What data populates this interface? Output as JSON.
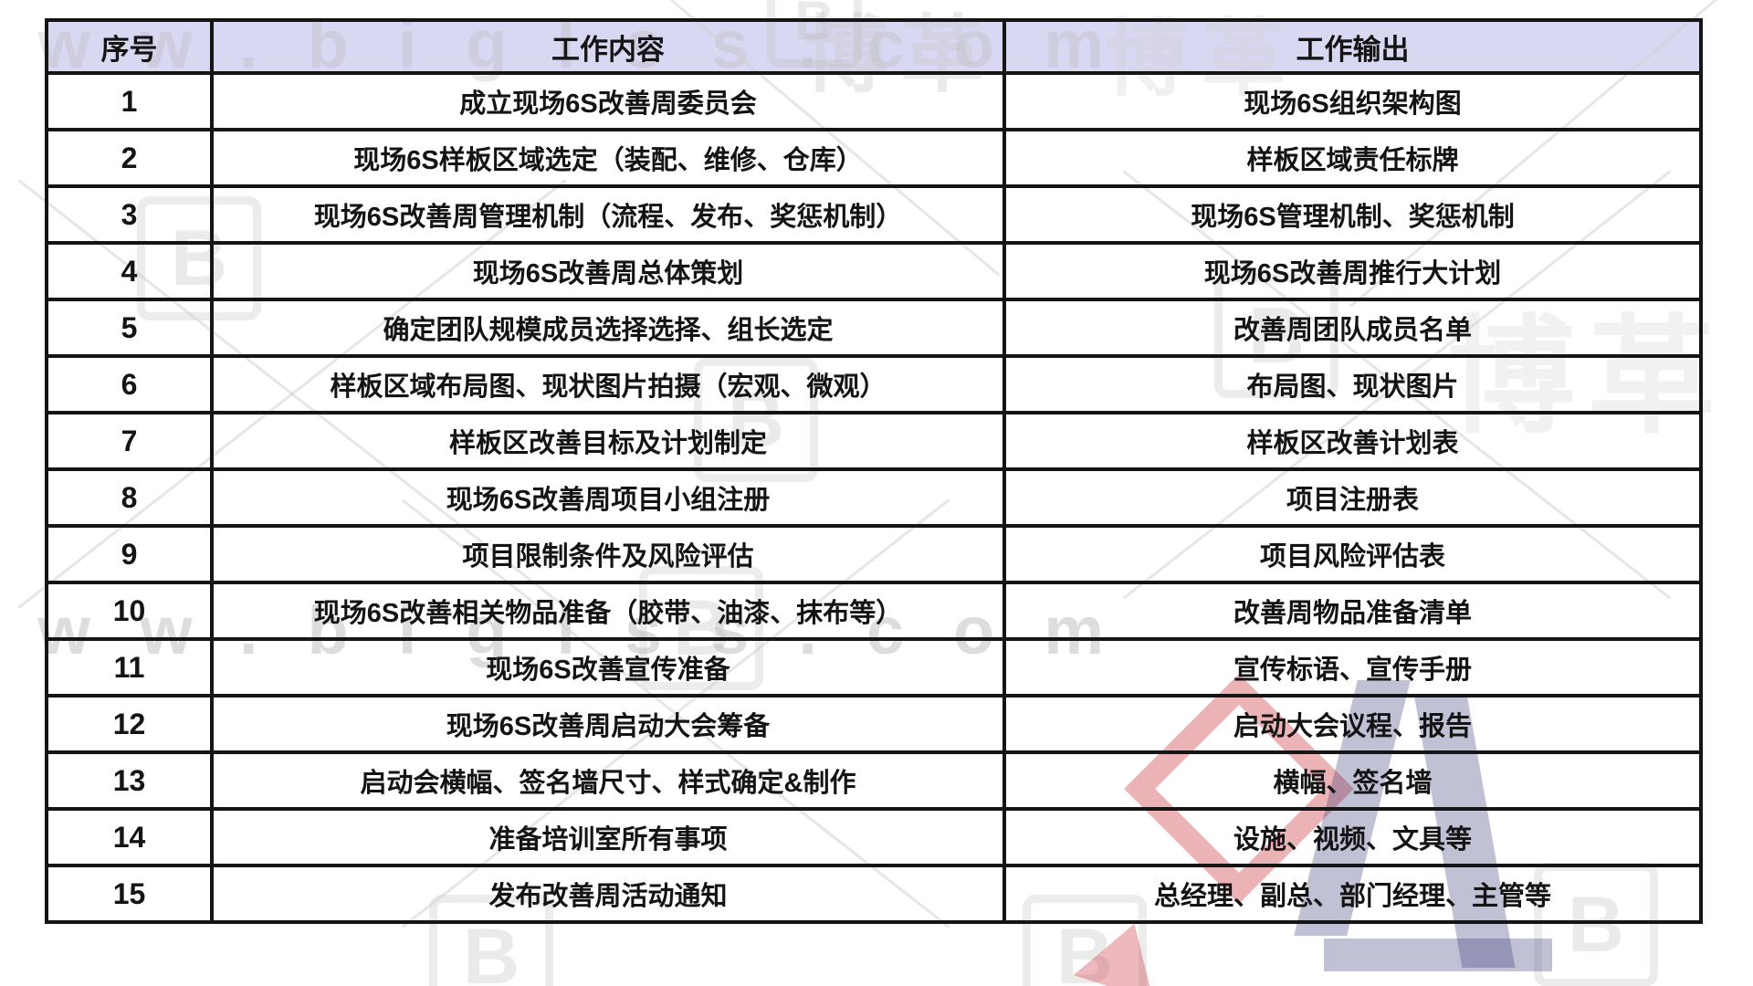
{
  "table": {
    "columns": [
      {
        "key": "index",
        "label": "序号"
      },
      {
        "key": "content",
        "label": "工作内容"
      },
      {
        "key": "output",
        "label": "工作输出"
      }
    ],
    "rows": [
      {
        "index": "1",
        "content": "成立现场6S改善周委员会",
        "output": "现场6S组织架构图"
      },
      {
        "index": "2",
        "content": "现场6S样板区域选定（装配、维修、仓库）",
        "output": "样板区域责任标牌"
      },
      {
        "index": "3",
        "content": "现场6S改善周管理机制（流程、发布、奖惩机制）",
        "output": "现场6S管理机制、奖惩机制"
      },
      {
        "index": "4",
        "content": "现场6S改善周总体策划",
        "output": "现场6S改善周推行大计划"
      },
      {
        "index": "5",
        "content": "确定团队规模成员选择选择、组长选定",
        "output": "改善周团队成员名单"
      },
      {
        "index": "6",
        "content": "样板区域布局图、现状图片拍摄（宏观、微观）",
        "output": "布局图、现状图片"
      },
      {
        "index": "7",
        "content": "样板区改善目标及计划制定",
        "output": "样板区改善计划表"
      },
      {
        "index": "8",
        "content": "现场6S改善周项目小组注册",
        "output": "项目注册表"
      },
      {
        "index": "9",
        "content": "项目限制条件及风险评估",
        "output": "项目风险评估表"
      },
      {
        "index": "10",
        "content": "现场6S改善相关物品准备（胶带、油漆、抹布等）",
        "output": "改善周物品准备清单"
      },
      {
        "index": "11",
        "content": "现场6S改善宣传准备",
        "output": "宣传标语、宣传手册"
      },
      {
        "index": "12",
        "content": "现场6S改善周启动大会筹备",
        "output": "启动大会议程、报告"
      },
      {
        "index": "13",
        "content": "启动会横幅、签名墙尺寸、样式确定&制作",
        "output": "横幅、签名墙"
      },
      {
        "index": "14",
        "content": "准备培训室所有事项",
        "output": "设施、视频、文具等"
      },
      {
        "index": "15",
        "content": "发布改善周活动通知",
        "output": "总经理、副总、部门经理、主管等"
      }
    ],
    "header_bg": "#d8d8f2",
    "border_color": "#151515",
    "text_color": "#141414"
  },
  "watermark": {
    "site_text": "www.biglss.com",
    "brand_text": "博革",
    "logo_letter": "B",
    "gray": "#bdbdbd",
    "red": "#cd373e",
    "blue": "#2d3273"
  }
}
